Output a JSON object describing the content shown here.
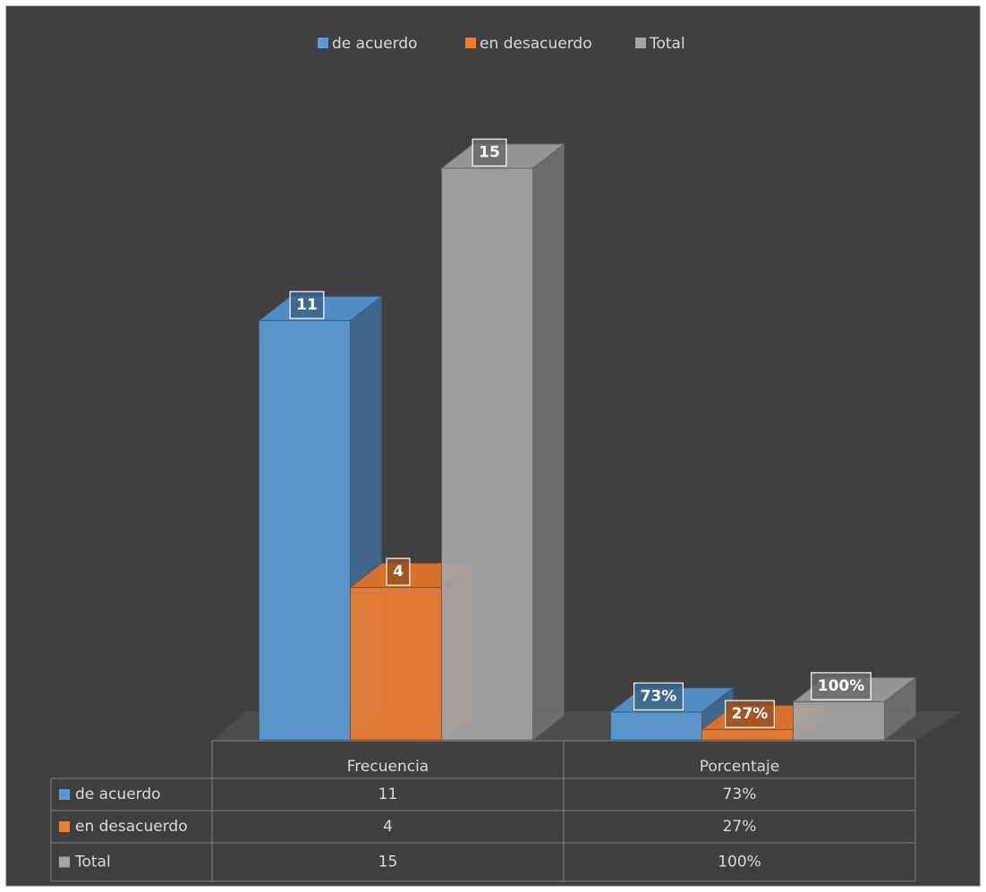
{
  "chart_data": {
    "type": "bar3d",
    "categories": [
      "Frecuencia",
      "Porcentaje"
    ],
    "series": [
      {
        "name": "de acuerdo",
        "color": "#5b9bd5",
        "values": [
          11,
          0.73
        ],
        "value_labels": [
          "11",
          "73%"
        ]
      },
      {
        "name": "en desacuerdo",
        "color": "#ed7d31",
        "values": [
          4,
          0.27
        ],
        "value_labels": [
          "4",
          "27%"
        ]
      },
      {
        "name": "Total",
        "color": "#a5a5a5",
        "values": [
          15,
          1
        ],
        "value_labels": [
          "15",
          "100%"
        ]
      }
    ],
    "ylim": [
      0,
      16
    ],
    "legend": "top",
    "data_table": true
  }
}
